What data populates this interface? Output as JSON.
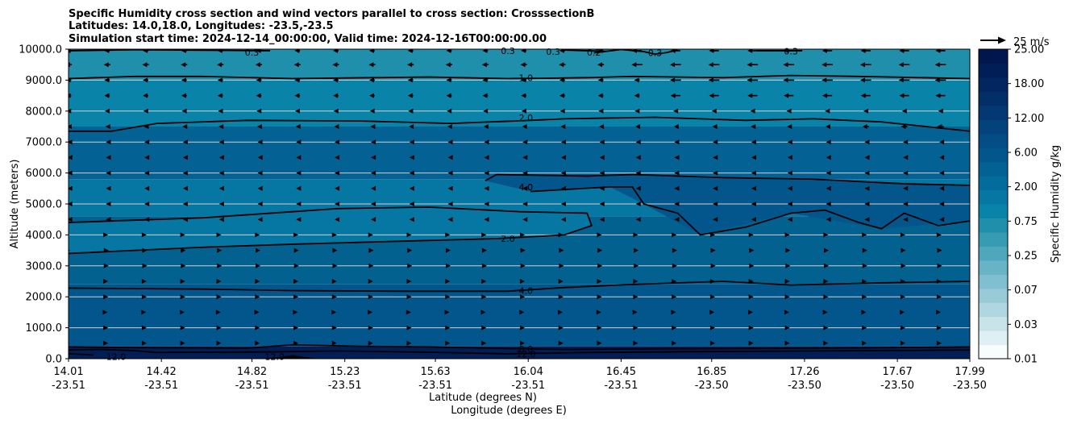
{
  "chart_data": {
    "type": "heatmap",
    "title_lines": [
      "Specific Humidity cross section and wind vectors parallel to cross section: CrosssectionB",
      "Latitudes: 14.0,18.0, Longitudes: -23.5,-23.5",
      "Simulation start time: 2024-12-14_00:00:00, Valid time: 2024-12-16T00:00:00.00"
    ],
    "xlabel": "Latitude (degrees N)",
    "xlabel2": "Longitude (degrees E)",
    "ylabel": "Altitude (meters)",
    "xlim": [
      14.01,
      17.99
    ],
    "ylim": [
      0,
      10000
    ],
    "x_ticks": [
      {
        "lat": "14.01",
        "lon": "-23.51",
        "v": 14.01
      },
      {
        "lat": "14.42",
        "lon": "-23.51",
        "v": 14.42
      },
      {
        "lat": "14.82",
        "lon": "-23.51",
        "v": 14.82
      },
      {
        "lat": "15.23",
        "lon": "-23.51",
        "v": 15.23
      },
      {
        "lat": "15.63",
        "lon": "-23.51",
        "v": 15.63
      },
      {
        "lat": "16.04",
        "lon": "-23.51",
        "v": 16.04
      },
      {
        "lat": "16.45",
        "lon": "-23.51",
        "v": 16.45
      },
      {
        "lat": "16.85",
        "lon": "-23.50",
        "v": 16.85
      },
      {
        "lat": "17.26",
        "lon": "-23.50",
        "v": 17.26
      },
      {
        "lat": "17.67",
        "lon": "-23.50",
        "v": 17.67
      },
      {
        "lat": "17.99",
        "lon": "-23.50",
        "v": 17.99
      }
    ],
    "y_ticks": [
      {
        "label": "0.0",
        "v": 0
      },
      {
        "label": "1000.0",
        "v": 1000
      },
      {
        "label": "2000.0",
        "v": 2000
      },
      {
        "label": "3000.0",
        "v": 3000
      },
      {
        "label": "4000.0",
        "v": 4000
      },
      {
        "label": "5000.0",
        "v": 5000
      },
      {
        "label": "6000.0",
        "v": 6000
      },
      {
        "label": "7000.0",
        "v": 7000
      },
      {
        "label": "8000.0",
        "v": 8000
      },
      {
        "label": "9000.0",
        "v": 9000
      },
      {
        "label": "10000.0",
        "v": 10000
      }
    ],
    "grid": "horizontal",
    "colorbar": {
      "label": "Specific Humidity g/kg",
      "tick_labels": [
        "0.01",
        "0.03",
        "0.07",
        "0.25",
        "0.75",
        "2.00",
        "6.00",
        "12.00",
        "18.00",
        "25.00"
      ],
      "colors": [
        "#f7fcfd",
        "#e0eff3",
        "#c8e3ea",
        "#b0d7e1",
        "#98cbd8",
        "#80bfcf",
        "#68b3c6",
        "#4fa7bd",
        "#379bb4",
        "#1f8fab",
        "#0a83a8",
        "#0677a3",
        "#046c9c",
        "#036194",
        "#03568c",
        "#034c84",
        "#03427b",
        "#033872",
        "#032f69",
        "#032660",
        "#021e57",
        "#02164e"
      ]
    },
    "quiver_key": {
      "label": "25 m/s",
      "value": 25
    },
    "contours": [
      {
        "label": "0.3",
        "label_at": [
          14.82,
          9900
        ],
        "points": [
          [
            14.01,
            9950
          ],
          [
            14.3,
            9980
          ],
          [
            14.7,
            9960
          ],
          [
            14.9,
            9950
          ]
        ]
      },
      {
        "label": "0.3",
        "label_at": [
          15.95,
          9950
        ],
        "points": [
          [
            16.2,
            9970
          ],
          [
            16.3,
            9950
          ],
          [
            16.38,
            9930
          ]
        ]
      },
      {
        "label": "0.3",
        "label_at": [
          16.6,
          9880
        ],
        "points": []
      },
      {
        "label": "0.3",
        "label_at": [
          16.15,
          9920
        ],
        "points": []
      },
      {
        "label": "0.3",
        "label_at": [
          17.2,
          9940
        ],
        "points": [
          [
            17.05,
            9950
          ],
          [
            17.25,
            9950
          ]
        ]
      },
      {
        "label": "0.2",
        "label_at": [
          16.33,
          9900
        ],
        "points": [
          [
            16.33,
            9880
          ],
          [
            16.45,
            9990
          ],
          [
            16.55,
            9920
          ],
          [
            16.6,
            9840
          ],
          [
            16.65,
            9890
          ],
          [
            16.7,
            9970
          ]
        ]
      },
      {
        "label": "1.0",
        "label_at": [
          16.03,
          9080
        ],
        "points": [
          [
            14.01,
            9050
          ],
          [
            14.3,
            9120
          ],
          [
            14.6,
            9120
          ],
          [
            15.0,
            9050
          ],
          [
            15.6,
            9100
          ],
          [
            15.95,
            9050
          ],
          [
            16.1,
            9060
          ],
          [
            16.3,
            9080
          ],
          [
            16.5,
            9120
          ],
          [
            16.9,
            9080
          ],
          [
            17.2,
            9150
          ],
          [
            17.5,
            9120
          ],
          [
            17.99,
            9050
          ]
        ]
      },
      {
        "label": "2.0",
        "label_at": [
          16.03,
          7780
        ],
        "points": [
          [
            14.01,
            7350
          ],
          [
            14.2,
            7350
          ],
          [
            14.4,
            7600
          ],
          [
            14.8,
            7700
          ],
          [
            15.3,
            7680
          ],
          [
            15.7,
            7600
          ],
          [
            16.05,
            7700
          ],
          [
            16.2,
            7750
          ],
          [
            16.6,
            7800
          ],
          [
            17.0,
            7700
          ],
          [
            17.3,
            7750
          ],
          [
            17.6,
            7650
          ],
          [
            17.99,
            7350
          ]
        ]
      },
      {
        "label": "4.0",
        "label_at": [
          16.03,
          5550
        ],
        "points": [
          [
            15.85,
            5750
          ],
          [
            15.9,
            5950
          ],
          [
            16.3,
            5900
          ],
          [
            16.5,
            5950
          ],
          [
            16.9,
            5850
          ],
          [
            17.3,
            5800
          ],
          [
            17.7,
            5650
          ],
          [
            17.99,
            5600
          ]
        ]
      },
      {
        "label": "4.0",
        "label_at": [
          16.03,
          5550
        ],
        "points": [
          [
            16.05,
            5400
          ],
          [
            16.4,
            5550
          ],
          [
            16.5,
            5550
          ],
          [
            16.55,
            5000
          ],
          [
            16.7,
            4700
          ],
          [
            16.8,
            4000
          ],
          [
            17.0,
            4250
          ],
          [
            17.2,
            4700
          ],
          [
            17.35,
            4800
          ],
          [
            17.5,
            4400
          ],
          [
            17.6,
            4200
          ],
          [
            17.7,
            4700
          ],
          [
            17.85,
            4300
          ],
          [
            17.99,
            4450
          ]
        ]
      },
      {
        "label": "2.0",
        "label_at": [
          15.95,
          3880
        ],
        "points": [
          [
            14.01,
            4400
          ],
          [
            14.6,
            4550
          ],
          [
            15.2,
            4850
          ],
          [
            15.6,
            4900
          ],
          [
            16.0,
            4750
          ],
          [
            16.3,
            4700
          ],
          [
            16.32,
            4300
          ],
          [
            16.2,
            4000
          ],
          [
            15.9,
            3880
          ],
          [
            15.5,
            3800
          ],
          [
            15.0,
            3700
          ],
          [
            14.6,
            3600
          ],
          [
            14.01,
            3400
          ]
        ]
      },
      {
        "label": "4.0",
        "label_at": [
          16.03,
          2200
        ],
        "points": [
          [
            14.01,
            2280
          ],
          [
            14.6,
            2250
          ],
          [
            15.0,
            2200
          ],
          [
            15.5,
            2180
          ],
          [
            15.95,
            2180
          ],
          [
            16.2,
            2300
          ],
          [
            16.5,
            2400
          ],
          [
            16.9,
            2500
          ],
          [
            17.2,
            2380
          ],
          [
            17.6,
            2450
          ],
          [
            17.99,
            2500
          ]
        ]
      },
      {
        "label": "8.0",
        "label_at": [
          16.03,
          310
        ],
        "points": [
          [
            14.01,
            380
          ],
          [
            14.3,
            360
          ],
          [
            14.8,
            340
          ],
          [
            15.0,
            450
          ],
          [
            15.3,
            400
          ],
          [
            15.6,
            380
          ],
          [
            15.95,
            330
          ],
          [
            16.2,
            300
          ],
          [
            16.6,
            320
          ],
          [
            17.0,
            330
          ],
          [
            17.5,
            350
          ],
          [
            17.99,
            380
          ]
        ]
      },
      {
        "label": "12.0",
        "label_at": [
          16.03,
          160
        ],
        "points": [
          [
            14.01,
            280
          ],
          [
            14.15,
            300
          ],
          [
            14.3,
            260
          ],
          [
            14.4,
            200
          ],
          [
            14.9,
            220
          ],
          [
            15.2,
            250
          ],
          [
            15.6,
            210
          ],
          [
            15.95,
            160
          ],
          [
            16.3,
            200
          ],
          [
            16.8,
            230
          ],
          [
            17.3,
            250
          ],
          [
            17.99,
            280
          ]
        ]
      },
      {
        "label": "12.0",
        "label_at": [
          14.22,
          60
        ],
        "points": [
          [
            14.01,
            160
          ],
          [
            14.12,
            120
          ]
        ]
      },
      {
        "label": "12.0",
        "label_at": [
          14.92,
          60
        ],
        "points": []
      }
    ],
    "wind_note": "vectors parallel to cross section; lengths scaled to 25 m/s key",
    "wind_rows": [
      {
        "z": 9950,
        "u": -5
      },
      {
        "z": 9500,
        "u": -6
      },
      {
        "z": 9000,
        "u": -5
      },
      {
        "z": 8500,
        "u": -5
      },
      {
        "z": 8000,
        "u": -4
      },
      {
        "z": 7500,
        "u": -3
      },
      {
        "z": 7000,
        "u": -2
      },
      {
        "z": 6500,
        "u": -2
      },
      {
        "z": 6000,
        "u": -2
      },
      {
        "z": 5500,
        "u": -2
      },
      {
        "z": 5000,
        "u": -2
      },
      {
        "z": 4500,
        "u": -2
      },
      {
        "z": 4000,
        "u": 2
      },
      {
        "z": 3500,
        "u": 3
      },
      {
        "z": 3000,
        "u": 3
      },
      {
        "z": 2500,
        "u": 2
      },
      {
        "z": 2000,
        "u": 2
      },
      {
        "z": 1500,
        "u": 1
      },
      {
        "z": 1000,
        "u": 2
      },
      {
        "z": 500,
        "u": 2
      }
    ],
    "wind_cols": [
      14.01,
      14.18,
      14.35,
      14.52,
      14.68,
      14.85,
      15.02,
      15.19,
      15.35,
      15.52,
      15.69,
      15.85,
      16.02,
      16.19,
      16.36,
      16.52,
      16.69,
      16.86,
      17.03,
      17.19,
      17.36,
      17.53,
      17.7,
      17.86
    ],
    "wind_upper_boost": [
      {
        "z": 9950,
        "from": 16.5,
        "u": -9
      },
      {
        "z": 9500,
        "from": 16.5,
        "u": -10
      },
      {
        "z": 9000,
        "from": 16.6,
        "u": -10
      },
      {
        "z": 8500,
        "from": 16.6,
        "u": -9
      },
      {
        "z": 7500,
        "from": 17.4,
        "u": -6
      }
    ]
  }
}
